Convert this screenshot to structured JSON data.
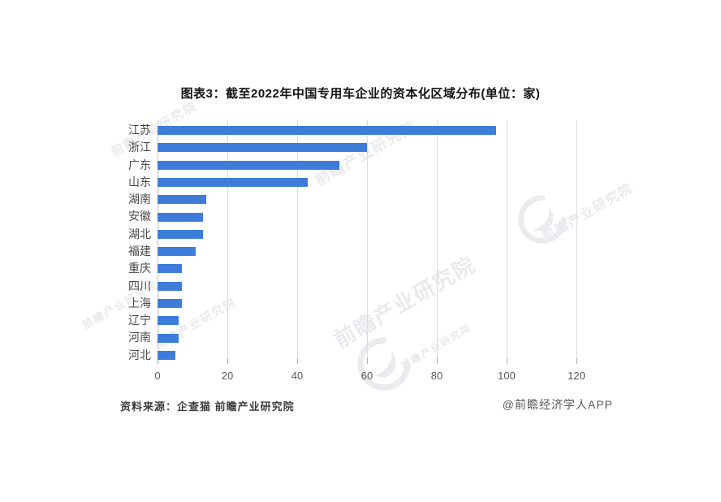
{
  "title": "图表3：截至2022年中国专用车企业的资本化区域分布(单位：家)",
  "chart_data": {
    "type": "bar",
    "orientation": "horizontal",
    "title": "图表3：截至2022年中国专用车企业的资本化区域分布(单位：家)",
    "unit_label": "家",
    "categories": [
      "江苏",
      "浙江",
      "广东",
      "山东",
      "湖南",
      "安徽",
      "湖北",
      "福建",
      "重庆",
      "四川",
      "上海",
      "辽宁",
      "河南",
      "河北"
    ],
    "values": [
      97,
      60,
      52,
      43,
      14,
      13,
      13,
      11,
      7,
      7,
      7,
      6,
      6,
      5
    ],
    "xticks": [
      0,
      20,
      40,
      60,
      80,
      100,
      120
    ],
    "xlim": [
      0,
      126
    ],
    "grid": true,
    "legend": "none",
    "bar_color": "#3D7CD9"
  },
  "footer": {
    "source": "资料来源：企查猫 前瞻产业研究院",
    "credit": "@前瞻经济学人APP"
  },
  "watermark": {
    "text": "前瞻产业研究院",
    "logo_name": "qianzhan-logo",
    "color": "#e8eaed"
  },
  "colors": {
    "background": "#ffffff",
    "bar": "#3D7CD9",
    "gridline": "#dbdbdb",
    "axis_text": "#595959",
    "title_text": "#141414"
  }
}
